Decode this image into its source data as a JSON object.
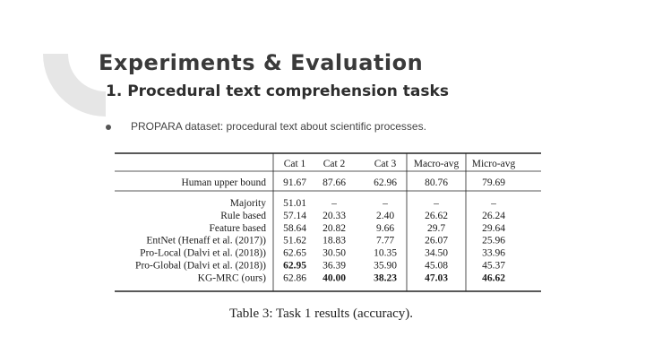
{
  "slide": {
    "title": "Experiments & Evaluation",
    "subtitle": "1.  Procedural text comprehension tasks",
    "bullets": [
      "PROPARA dataset: procedural text about scientific processes."
    ]
  },
  "table": {
    "columns": [
      "Cat 1",
      "Cat 2",
      "Cat 3",
      "Macro-avg",
      "Micro-avg"
    ],
    "human_row": {
      "label": "Human upper bound",
      "cells": [
        "91.67",
        "87.66",
        "62.96",
        "80.76",
        "79.69"
      ]
    },
    "rows": [
      {
        "label": "Majority",
        "cells": [
          "51.01",
          "–",
          "–",
          "–",
          "–"
        ],
        "bold": [
          false,
          false,
          false,
          false,
          false
        ]
      },
      {
        "label": "Rule based",
        "cells": [
          "57.14",
          "20.33",
          "2.40",
          "26.62",
          "26.24"
        ],
        "bold": [
          false,
          false,
          false,
          false,
          false
        ]
      },
      {
        "label": "Feature based",
        "cells": [
          "58.64",
          "20.82",
          "9.66",
          "29.7",
          "29.64"
        ],
        "bold": [
          false,
          false,
          false,
          false,
          false
        ]
      },
      {
        "label": "EntNet (Henaff et al. (2017))",
        "cells": [
          "51.62",
          "18.83",
          "7.77",
          "26.07",
          "25.96"
        ],
        "bold": [
          false,
          false,
          false,
          false,
          false
        ]
      },
      {
        "label": "Pro-Local (Dalvi et al. (2018))",
        "cells": [
          "62.65",
          "30.50",
          "10.35",
          "34.50",
          "33.96"
        ],
        "bold": [
          false,
          false,
          false,
          false,
          false
        ]
      },
      {
        "label": "Pro-Global (Dalvi et al. (2018))",
        "cells": [
          "62.95",
          "36.39",
          "35.90",
          "45.08",
          "45.37"
        ],
        "bold": [
          true,
          false,
          false,
          false,
          false
        ]
      },
      {
        "label": "KG-MRC (ours)",
        "cells": [
          "62.86",
          "40.00",
          "38.23",
          "47.03",
          "46.62"
        ],
        "bold": [
          false,
          true,
          true,
          true,
          true
        ]
      }
    ],
    "caption": "Table 3: Task 1 results (accuracy)."
  }
}
